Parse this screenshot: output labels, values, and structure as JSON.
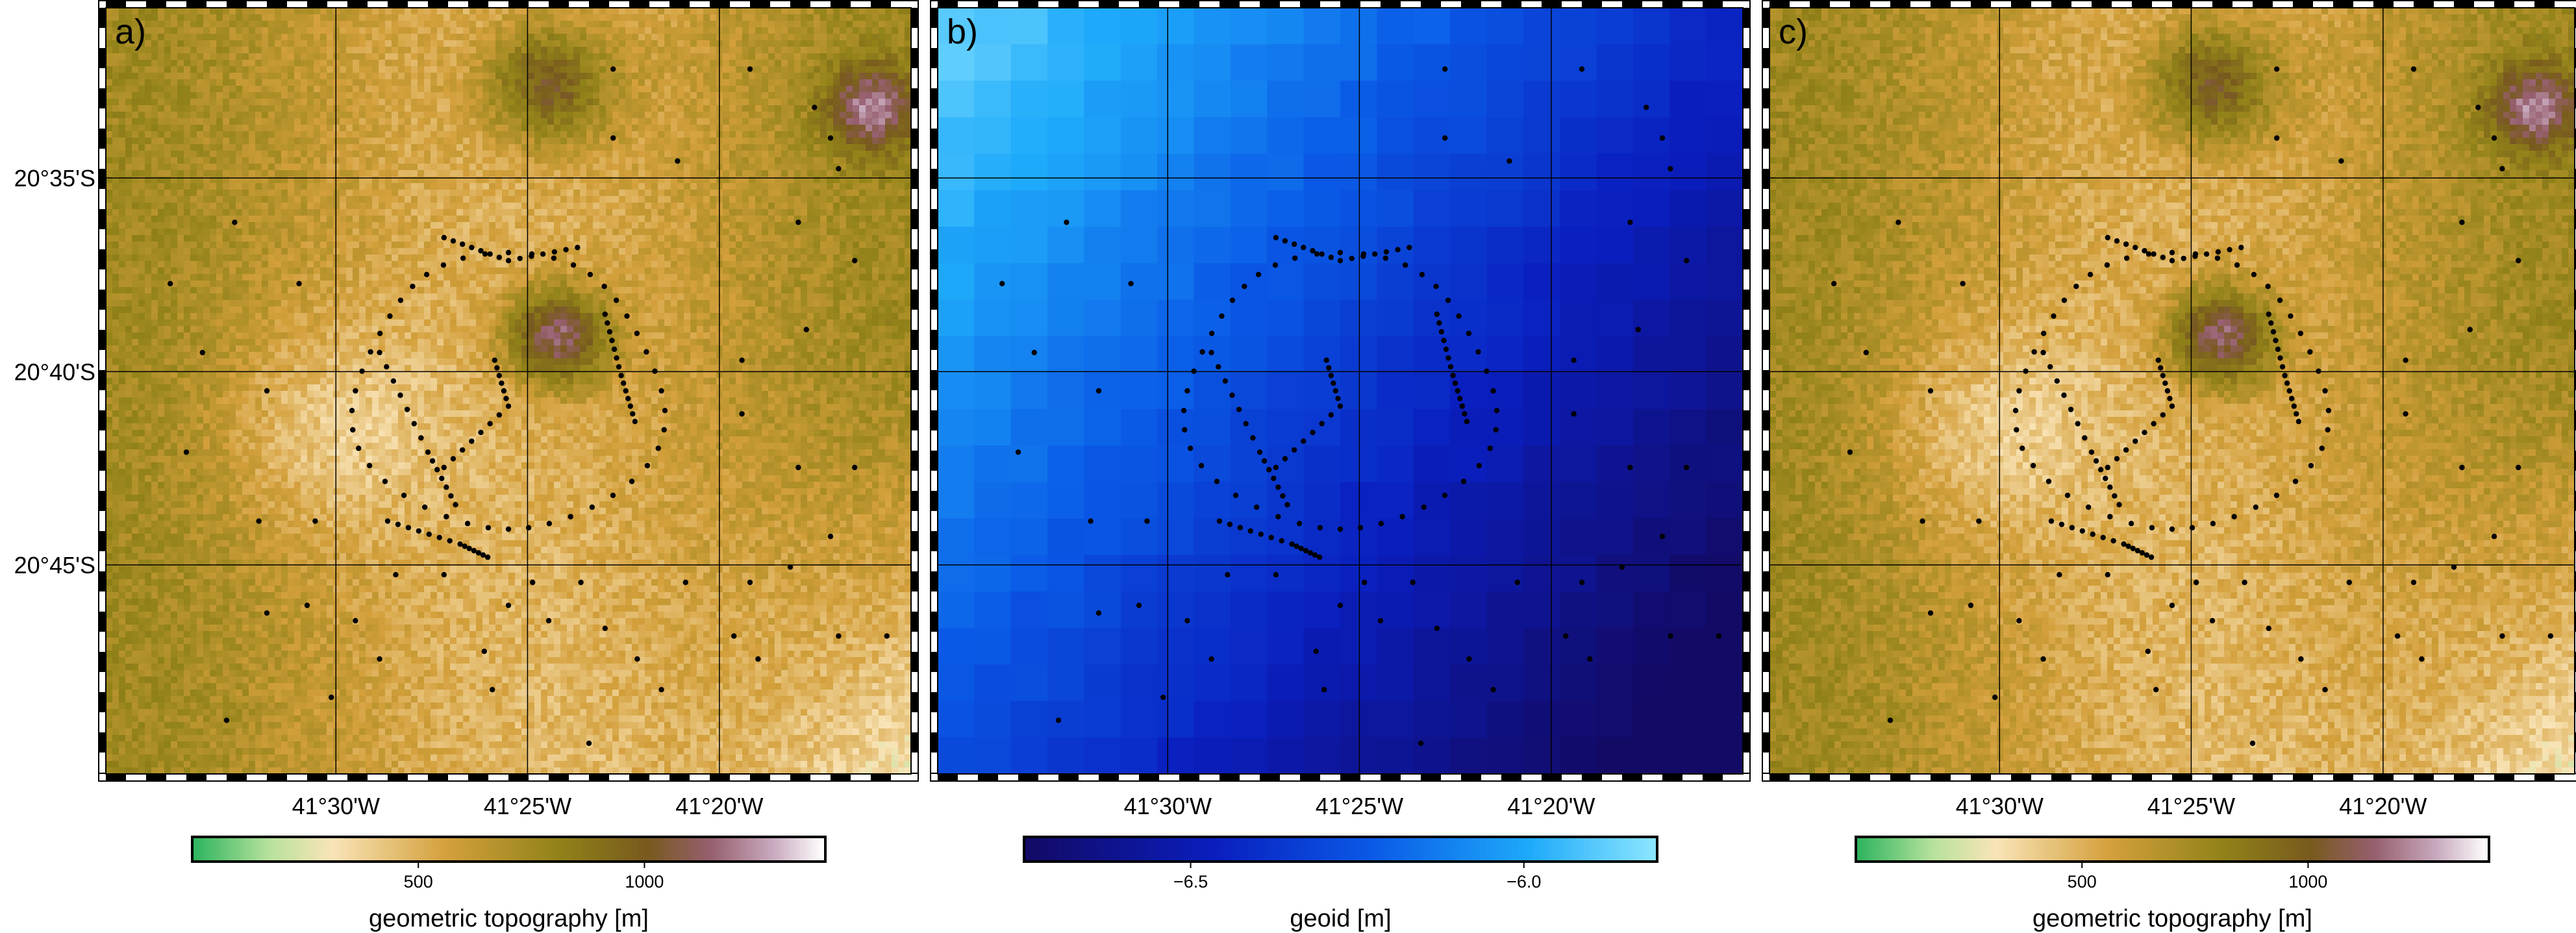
{
  "panels": [
    {
      "id": "a",
      "label": "a)",
      "variable": "topography",
      "colorbar": {
        "title": "geometric topography [m]",
        "ticks": [
          "500",
          "1000"
        ],
        "tick_values": [
          500,
          1000
        ],
        "range": [
          0,
          1400
        ],
        "colormap": "geo (green → tan → brown → mauve → white)"
      }
    },
    {
      "id": "b",
      "label": "b)",
      "variable": "geoid",
      "colorbar": {
        "title": "geoid [m]",
        "ticks": [
          "−6.5",
          "−6.0"
        ],
        "tick_values": [
          -6.5,
          -6.0
        ],
        "range": [
          -6.75,
          -5.8
        ],
        "colormap": "dark navy → blue → light cyan"
      }
    },
    {
      "id": "c",
      "label": "c)",
      "variable": "topography",
      "colorbar": {
        "title": "geometric topography [m]",
        "ticks": [
          "500",
          "1000"
        ],
        "tick_values": [
          500,
          1000
        ],
        "range": [
          0,
          1400
        ],
        "colormap": "geo (green → tan → brown → mauve → white)"
      }
    }
  ],
  "map_extent": {
    "lon_min": -41.6,
    "lon_max": -41.25,
    "lat_min": -20.84,
    "lat_max": -20.51
  },
  "lat_ticks": [
    {
      "value": -20.5833,
      "label": "20°35'S"
    },
    {
      "value": -20.6667,
      "label": "20°40'S"
    },
    {
      "value": -20.75,
      "label": "20°45'S"
    }
  ],
  "lon_ticks": [
    {
      "value": -41.5,
      "label": "41°30'W"
    },
    {
      "value": -41.4167,
      "label": "41°25'W"
    },
    {
      "value": -41.3333,
      "label": "41°20'W"
    }
  ],
  "colors": {
    "frame": "#000000",
    "grid": "#000000",
    "stations": "#000000",
    "topo_low": "#2fb463",
    "topo_mid": "#c9a13a",
    "topo_high": "#ffffff",
    "geoid_low": "#0d0a5e",
    "geoid_high": "#8ee6ff"
  }
}
